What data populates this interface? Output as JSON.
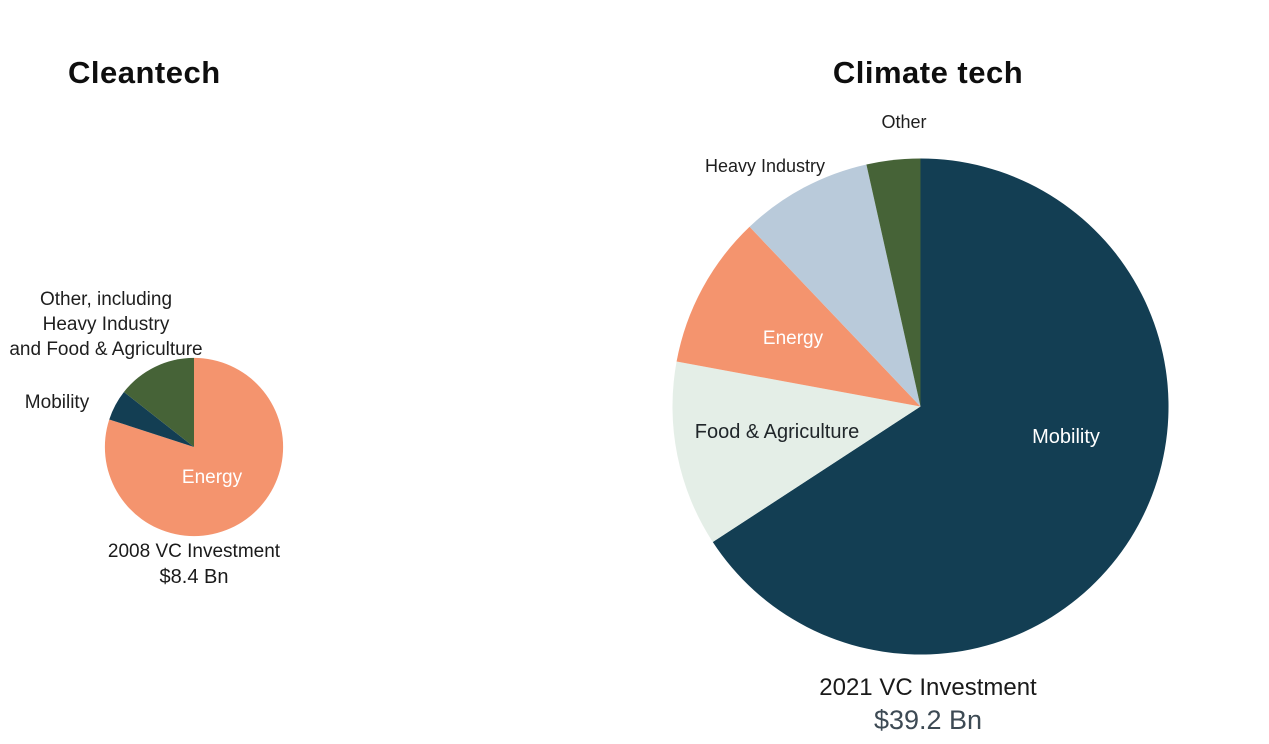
{
  "chart_data": [
    {
      "type": "pie",
      "title": "Cleantech",
      "caption": "2008 VC Investment",
      "total": "$8.4 Bn",
      "total_color": "#1a1a1a",
      "start_angle_deg": 0,
      "direction": "clockwise",
      "legend_position": "labels-on-chart",
      "slices": [
        {
          "label": "Energy",
          "pct": 80.0,
          "color": "#F4946E",
          "text_color": "#FFFFFF",
          "placement": "inside"
        },
        {
          "label": "Mobility",
          "pct": 5.6,
          "color": "#133E53",
          "text_color": "#1e1e1e",
          "placement": "outside"
        },
        {
          "label": "Other, including\nHeavy Industry\nand Food & Agriculture",
          "pct": 14.4,
          "color": "#466337",
          "text_color": "#1e1e1e",
          "placement": "outside"
        }
      ]
    },
    {
      "type": "pie",
      "title": "Climate tech",
      "caption": "2021 VC Investment",
      "total": "$39.2 Bn",
      "total_color": "#3D4A54",
      "start_angle_deg": 0,
      "direction": "clockwise",
      "legend_position": "labels-on-chart",
      "slices": [
        {
          "label": "Mobility",
          "pct": 65.8,
          "color": "#133E53",
          "text_color": "#FFFFFF",
          "placement": "inside"
        },
        {
          "label": "Food & Agriculture",
          "pct": 12.1,
          "color": "#E4EEE7",
          "text_color": "#20262a",
          "placement": "inside"
        },
        {
          "label": "Energy",
          "pct": 10.0,
          "color": "#F4946E",
          "text_color": "#FFFFFF",
          "placement": "inside"
        },
        {
          "label": "Heavy Industry",
          "pct": 8.6,
          "color": "#B9CADA",
          "text_color": "#1e1e1e",
          "placement": "outside"
        },
        {
          "label": "Other",
          "pct": 3.5,
          "color": "#466337",
          "text_color": "#1e1e1e",
          "placement": "outside"
        }
      ]
    }
  ]
}
